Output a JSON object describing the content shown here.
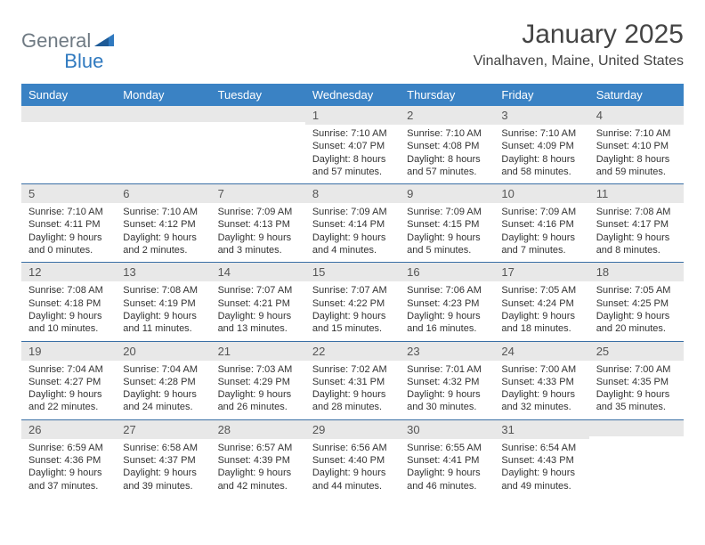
{
  "brand": {
    "word1": "General",
    "word2": "Blue"
  },
  "title": "January 2025",
  "location": "Vinalhaven, Maine, United States",
  "colors": {
    "header_bg": "#3a82c4",
    "header_text": "#ffffff",
    "row_divider": "#3a6fa5",
    "daynum_bg": "#e8e8e8",
    "text": "#333333",
    "logo_gray": "#6f7a83",
    "logo_blue": "#2f79bf"
  },
  "day_headers": [
    "Sunday",
    "Monday",
    "Tuesday",
    "Wednesday",
    "Thursday",
    "Friday",
    "Saturday"
  ],
  "weeks": [
    [
      {
        "n": "",
        "sunrise": "",
        "sunset": "",
        "daylight1": "",
        "daylight2": ""
      },
      {
        "n": "",
        "sunrise": "",
        "sunset": "",
        "daylight1": "",
        "daylight2": ""
      },
      {
        "n": "",
        "sunrise": "",
        "sunset": "",
        "daylight1": "",
        "daylight2": ""
      },
      {
        "n": "1",
        "sunrise": "Sunrise: 7:10 AM",
        "sunset": "Sunset: 4:07 PM",
        "daylight1": "Daylight: 8 hours",
        "daylight2": "and 57 minutes."
      },
      {
        "n": "2",
        "sunrise": "Sunrise: 7:10 AM",
        "sunset": "Sunset: 4:08 PM",
        "daylight1": "Daylight: 8 hours",
        "daylight2": "and 57 minutes."
      },
      {
        "n": "3",
        "sunrise": "Sunrise: 7:10 AM",
        "sunset": "Sunset: 4:09 PM",
        "daylight1": "Daylight: 8 hours",
        "daylight2": "and 58 minutes."
      },
      {
        "n": "4",
        "sunrise": "Sunrise: 7:10 AM",
        "sunset": "Sunset: 4:10 PM",
        "daylight1": "Daylight: 8 hours",
        "daylight2": "and 59 minutes."
      }
    ],
    [
      {
        "n": "5",
        "sunrise": "Sunrise: 7:10 AM",
        "sunset": "Sunset: 4:11 PM",
        "daylight1": "Daylight: 9 hours",
        "daylight2": "and 0 minutes."
      },
      {
        "n": "6",
        "sunrise": "Sunrise: 7:10 AM",
        "sunset": "Sunset: 4:12 PM",
        "daylight1": "Daylight: 9 hours",
        "daylight2": "and 2 minutes."
      },
      {
        "n": "7",
        "sunrise": "Sunrise: 7:09 AM",
        "sunset": "Sunset: 4:13 PM",
        "daylight1": "Daylight: 9 hours",
        "daylight2": "and 3 minutes."
      },
      {
        "n": "8",
        "sunrise": "Sunrise: 7:09 AM",
        "sunset": "Sunset: 4:14 PM",
        "daylight1": "Daylight: 9 hours",
        "daylight2": "and 4 minutes."
      },
      {
        "n": "9",
        "sunrise": "Sunrise: 7:09 AM",
        "sunset": "Sunset: 4:15 PM",
        "daylight1": "Daylight: 9 hours",
        "daylight2": "and 5 minutes."
      },
      {
        "n": "10",
        "sunrise": "Sunrise: 7:09 AM",
        "sunset": "Sunset: 4:16 PM",
        "daylight1": "Daylight: 9 hours",
        "daylight2": "and 7 minutes."
      },
      {
        "n": "11",
        "sunrise": "Sunrise: 7:08 AM",
        "sunset": "Sunset: 4:17 PM",
        "daylight1": "Daylight: 9 hours",
        "daylight2": "and 8 minutes."
      }
    ],
    [
      {
        "n": "12",
        "sunrise": "Sunrise: 7:08 AM",
        "sunset": "Sunset: 4:18 PM",
        "daylight1": "Daylight: 9 hours",
        "daylight2": "and 10 minutes."
      },
      {
        "n": "13",
        "sunrise": "Sunrise: 7:08 AM",
        "sunset": "Sunset: 4:19 PM",
        "daylight1": "Daylight: 9 hours",
        "daylight2": "and 11 minutes."
      },
      {
        "n": "14",
        "sunrise": "Sunrise: 7:07 AM",
        "sunset": "Sunset: 4:21 PM",
        "daylight1": "Daylight: 9 hours",
        "daylight2": "and 13 minutes."
      },
      {
        "n": "15",
        "sunrise": "Sunrise: 7:07 AM",
        "sunset": "Sunset: 4:22 PM",
        "daylight1": "Daylight: 9 hours",
        "daylight2": "and 15 minutes."
      },
      {
        "n": "16",
        "sunrise": "Sunrise: 7:06 AM",
        "sunset": "Sunset: 4:23 PM",
        "daylight1": "Daylight: 9 hours",
        "daylight2": "and 16 minutes."
      },
      {
        "n": "17",
        "sunrise": "Sunrise: 7:05 AM",
        "sunset": "Sunset: 4:24 PM",
        "daylight1": "Daylight: 9 hours",
        "daylight2": "and 18 minutes."
      },
      {
        "n": "18",
        "sunrise": "Sunrise: 7:05 AM",
        "sunset": "Sunset: 4:25 PM",
        "daylight1": "Daylight: 9 hours",
        "daylight2": "and 20 minutes."
      }
    ],
    [
      {
        "n": "19",
        "sunrise": "Sunrise: 7:04 AM",
        "sunset": "Sunset: 4:27 PM",
        "daylight1": "Daylight: 9 hours",
        "daylight2": "and 22 minutes."
      },
      {
        "n": "20",
        "sunrise": "Sunrise: 7:04 AM",
        "sunset": "Sunset: 4:28 PM",
        "daylight1": "Daylight: 9 hours",
        "daylight2": "and 24 minutes."
      },
      {
        "n": "21",
        "sunrise": "Sunrise: 7:03 AM",
        "sunset": "Sunset: 4:29 PM",
        "daylight1": "Daylight: 9 hours",
        "daylight2": "and 26 minutes."
      },
      {
        "n": "22",
        "sunrise": "Sunrise: 7:02 AM",
        "sunset": "Sunset: 4:31 PM",
        "daylight1": "Daylight: 9 hours",
        "daylight2": "and 28 minutes."
      },
      {
        "n": "23",
        "sunrise": "Sunrise: 7:01 AM",
        "sunset": "Sunset: 4:32 PM",
        "daylight1": "Daylight: 9 hours",
        "daylight2": "and 30 minutes."
      },
      {
        "n": "24",
        "sunrise": "Sunrise: 7:00 AM",
        "sunset": "Sunset: 4:33 PM",
        "daylight1": "Daylight: 9 hours",
        "daylight2": "and 32 minutes."
      },
      {
        "n": "25",
        "sunrise": "Sunrise: 7:00 AM",
        "sunset": "Sunset: 4:35 PM",
        "daylight1": "Daylight: 9 hours",
        "daylight2": "and 35 minutes."
      }
    ],
    [
      {
        "n": "26",
        "sunrise": "Sunrise: 6:59 AM",
        "sunset": "Sunset: 4:36 PM",
        "daylight1": "Daylight: 9 hours",
        "daylight2": "and 37 minutes."
      },
      {
        "n": "27",
        "sunrise": "Sunrise: 6:58 AM",
        "sunset": "Sunset: 4:37 PM",
        "daylight1": "Daylight: 9 hours",
        "daylight2": "and 39 minutes."
      },
      {
        "n": "28",
        "sunrise": "Sunrise: 6:57 AM",
        "sunset": "Sunset: 4:39 PM",
        "daylight1": "Daylight: 9 hours",
        "daylight2": "and 42 minutes."
      },
      {
        "n": "29",
        "sunrise": "Sunrise: 6:56 AM",
        "sunset": "Sunset: 4:40 PM",
        "daylight1": "Daylight: 9 hours",
        "daylight2": "and 44 minutes."
      },
      {
        "n": "30",
        "sunrise": "Sunrise: 6:55 AM",
        "sunset": "Sunset: 4:41 PM",
        "daylight1": "Daylight: 9 hours",
        "daylight2": "and 46 minutes."
      },
      {
        "n": "31",
        "sunrise": "Sunrise: 6:54 AM",
        "sunset": "Sunset: 4:43 PM",
        "daylight1": "Daylight: 9 hours",
        "daylight2": "and 49 minutes."
      },
      {
        "n": "",
        "sunrise": "",
        "sunset": "",
        "daylight1": "",
        "daylight2": ""
      }
    ]
  ]
}
